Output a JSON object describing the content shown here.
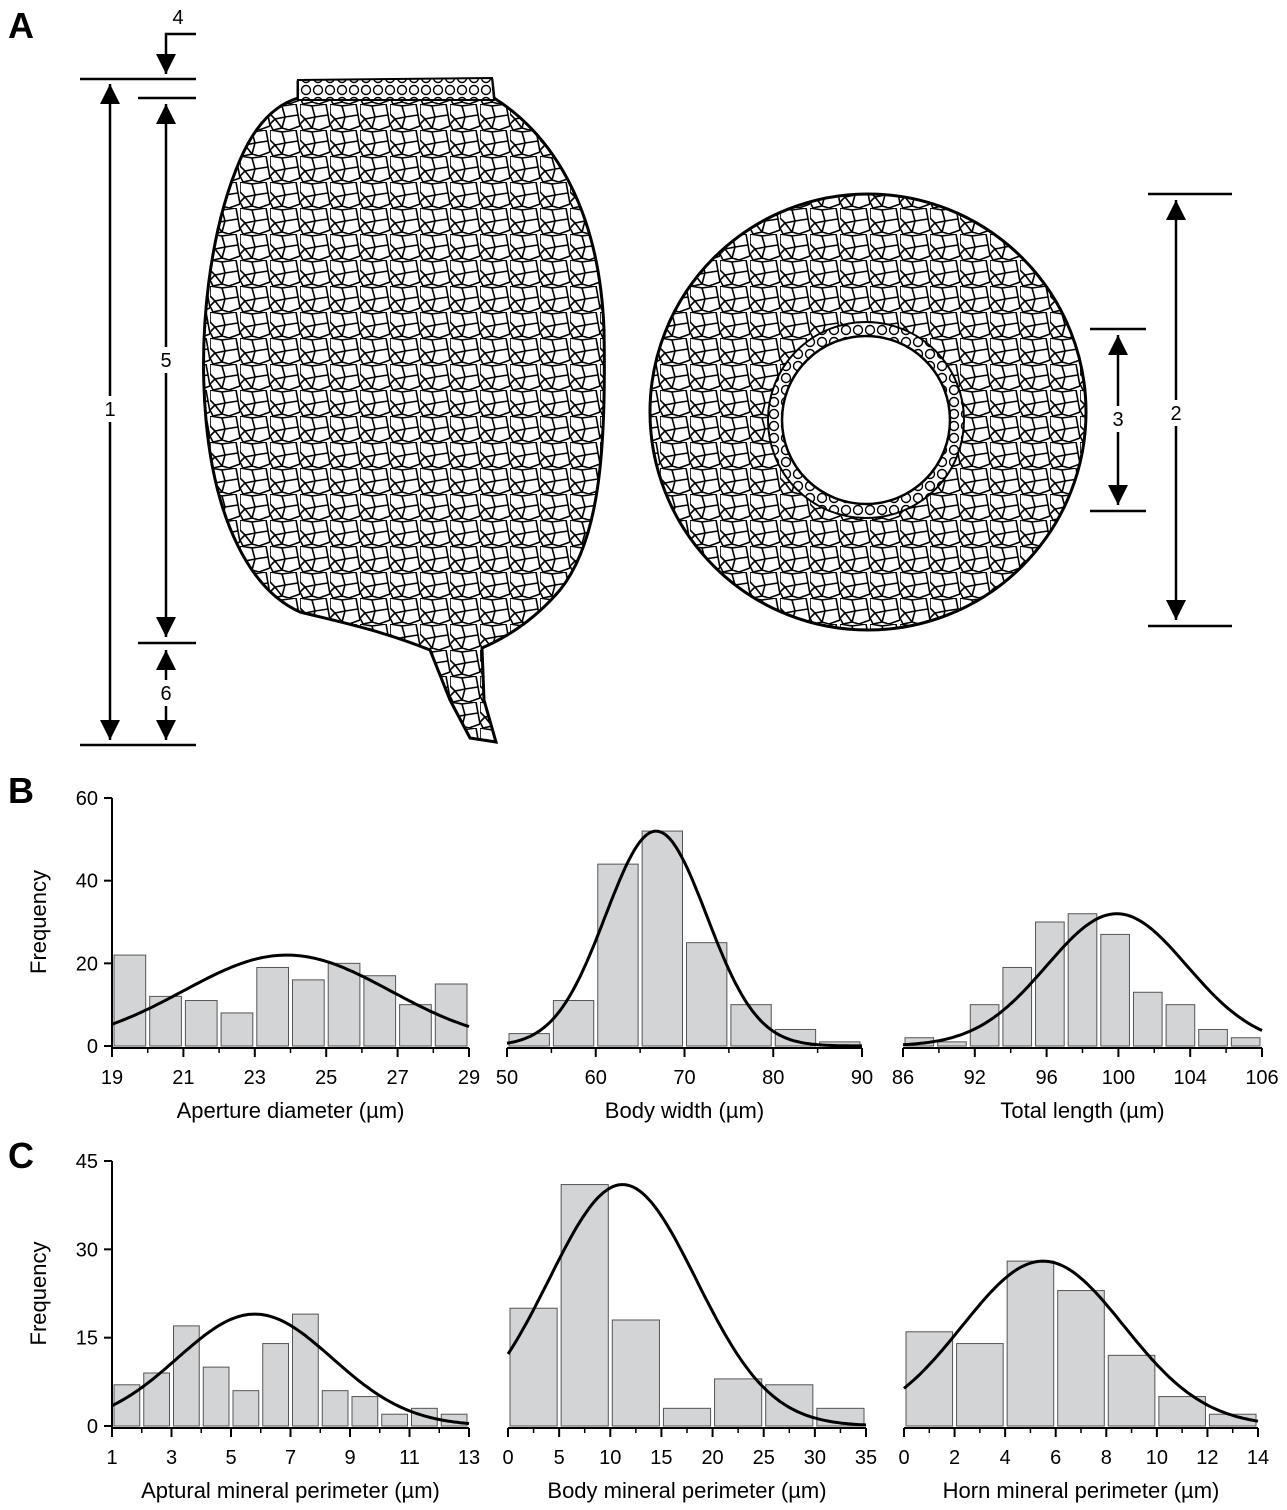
{
  "panels": {
    "a": "A",
    "b": "B",
    "c": "C"
  },
  "dimensions": [
    "1",
    "2",
    "3",
    "4",
    "5",
    "6"
  ],
  "colors": {
    "bar_fill": "#d3d4d6",
    "bar_stroke": "#555555",
    "curve": "#000000",
    "outline": "#000000"
  },
  "chart_data": [
    {
      "type": "bar",
      "panel": "B",
      "xlabel": "Aperture diameter (µm)",
      "ylabel": "Frequency",
      "xlim": [
        19,
        29
      ],
      "ylim": [
        0,
        60
      ],
      "xticks": [
        "19",
        "21",
        "23",
        "25",
        "27",
        "29"
      ],
      "yticks": [
        "0",
        "20",
        "40",
        "60"
      ],
      "bin_edges": [
        19,
        20,
        21,
        22,
        23,
        24,
        25,
        26,
        27,
        28,
        29
      ],
      "values": [
        22,
        12,
        11,
        8,
        19,
        16,
        20,
        17,
        10,
        15
      ],
      "fit": {
        "type": "normal",
        "mean": 23.9,
        "sd": 2.9,
        "peak": 22
      }
    },
    {
      "type": "bar",
      "panel": "B",
      "xlabel": "Body width (µm)",
      "ylabel": "",
      "xlim": [
        50,
        90
      ],
      "ylim": [
        0,
        60
      ],
      "xticks": [
        "50",
        "60",
        "70",
        "80",
        "90"
      ],
      "yticks": [],
      "bin_edges": [
        50,
        55,
        60,
        65,
        70,
        75,
        80,
        85,
        90
      ],
      "values": [
        3,
        11,
        44,
        52,
        25,
        10,
        4,
        1
      ],
      "fit": {
        "type": "normal",
        "mean": 66.8,
        "sd": 5.7,
        "peak": 52
      }
    },
    {
      "type": "bar",
      "panel": "B",
      "xlabel": "Total length (µm)",
      "ylabel": "",
      "xlim": [
        86,
        108
      ],
      "ylim": [
        0,
        60
      ],
      "xticks": [
        "86",
        "92",
        "96",
        "100",
        "104",
        "106"
      ],
      "yticks": [],
      "bin_edges": [
        86,
        88,
        90,
        92,
        94,
        96,
        98,
        100,
        102,
        104,
        106,
        108
      ],
      "values": [
        2,
        1,
        10,
        19,
        30,
        32,
        27,
        13,
        10,
        4,
        2
      ],
      "fit": {
        "type": "normal",
        "mean": 99.1,
        "sd": 4.3,
        "peak": 32
      }
    },
    {
      "type": "bar",
      "panel": "C",
      "xlabel": "Aptural mineral perimeter (µm)",
      "ylabel": "Frequency",
      "xlim": [
        1,
        13
      ],
      "ylim": [
        0,
        45
      ],
      "xticks": [
        "1",
        "3",
        "5",
        "7",
        "9",
        "11",
        "13"
      ],
      "yticks": [
        "0",
        "15",
        "30",
        "45"
      ],
      "bin_edges": [
        1,
        2,
        3,
        4,
        5,
        6,
        7,
        8,
        9,
        10,
        11,
        12,
        13
      ],
      "values": [
        7,
        9,
        17,
        10,
        6,
        14,
        19,
        6,
        5,
        2,
        3,
        2
      ],
      "fit": {
        "type": "normal",
        "mean": 5.8,
        "sd": 2.6,
        "peak": 19
      }
    },
    {
      "type": "bar",
      "panel": "C",
      "xlabel": "Body mineral perimeter (µm)",
      "ylabel": "",
      "xlim": [
        0,
        35
      ],
      "ylim": [
        0,
        45
      ],
      "xticks": [
        "0",
        "5",
        "10",
        "15",
        "20",
        "25",
        "30",
        "35"
      ],
      "yticks": [],
      "bin_edges": [
        0,
        5,
        10,
        15,
        20,
        25,
        30,
        35
      ],
      "values": [
        20,
        41,
        18,
        3,
        8,
        7,
        3
      ],
      "fit": {
        "type": "normal",
        "mean": 11.2,
        "sd": 7.2,
        "peak": 41
      }
    },
    {
      "type": "bar",
      "panel": "C",
      "xlabel": "Horn mineral perimeter (µm)",
      "ylabel": "",
      "xlim": [
        0,
        14
      ],
      "ylim": [
        0,
        45
      ],
      "xticks": [
        "0",
        "2",
        "4",
        "6",
        "8",
        "10",
        "12",
        "14"
      ],
      "yticks": [],
      "bin_edges": [
        0,
        2,
        4,
        6,
        8,
        10,
        12,
        14
      ],
      "values": [
        16,
        14,
        28,
        23,
        12,
        5,
        2
      ],
      "fit": {
        "type": "normal",
        "mean": 5.5,
        "sd": 3.2,
        "peak": 28
      }
    }
  ]
}
